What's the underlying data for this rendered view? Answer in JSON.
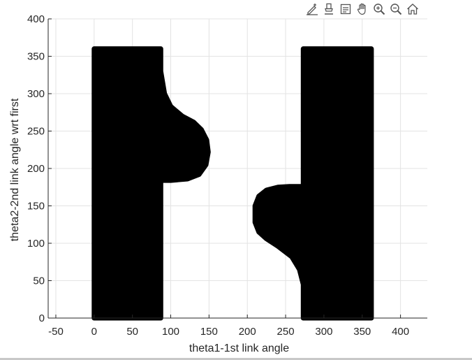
{
  "toolbar": {
    "icons": [
      "edit-plot-icon",
      "data-tips-icon",
      "brush-icon",
      "pan-icon",
      "zoom-in-icon",
      "zoom-out-icon",
      "home-icon"
    ]
  },
  "chart_data": {
    "type": "scatter",
    "title": "",
    "xlabel": "theta1-1st link angle",
    "ylabel": "theta2-2nd link angle wrt first",
    "xlim": [
      -60,
      435
    ],
    "ylim": [
      0,
      400
    ],
    "xticks": [
      -50,
      0,
      50,
      100,
      150,
      200,
      250,
      300,
      350,
      400
    ],
    "yticks": [
      0,
      50,
      100,
      150,
      200,
      250,
      300,
      350,
      400
    ],
    "xtick_labels": [
      "-50",
      "0",
      "50",
      "100",
      "150",
      "200",
      "250",
      "300",
      "350",
      "400"
    ],
    "ytick_labels": [
      "0",
      "50",
      "100",
      "150",
      "200",
      "250",
      "300",
      "350",
      "400"
    ],
    "grid": true,
    "marker_color": "#000000",
    "regions": [
      {
        "name": "left obstacle region",
        "outline": [
          [
            0,
            0
          ],
          [
            0,
            360
          ],
          [
            87,
            360
          ],
          [
            87,
            330
          ],
          [
            92,
            300
          ],
          [
            100,
            283
          ],
          [
            115,
            270
          ],
          [
            130,
            262
          ],
          [
            140,
            252
          ],
          [
            147,
            238
          ],
          [
            149,
            222
          ],
          [
            146,
            205
          ],
          [
            137,
            192
          ],
          [
            122,
            186
          ],
          [
            100,
            184
          ],
          [
            87,
            184
          ],
          [
            87,
            0
          ]
        ]
      },
      {
        "name": "right obstacle region",
        "outline": [
          [
            273,
            0
          ],
          [
            273,
            45
          ],
          [
            268,
            65
          ],
          [
            258,
            82
          ],
          [
            240,
            96
          ],
          [
            225,
            106
          ],
          [
            215,
            115
          ],
          [
            210,
            128
          ],
          [
            210,
            150
          ],
          [
            215,
            163
          ],
          [
            225,
            171
          ],
          [
            240,
            175
          ],
          [
            255,
            176
          ],
          [
            273,
            176
          ],
          [
            273,
            360
          ],
          [
            362,
            360
          ],
          [
            362,
            0
          ]
        ]
      }
    ]
  }
}
